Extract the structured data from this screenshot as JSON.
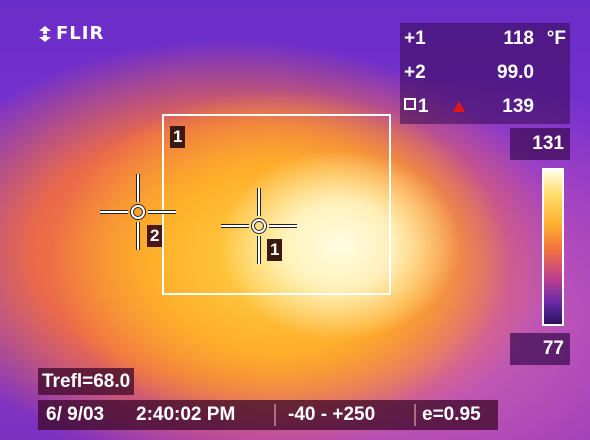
{
  "brand": {
    "name": "FLIR"
  },
  "readouts": [
    {
      "label": "1",
      "glyph": "+",
      "value": "118",
      "unit": "°F"
    },
    {
      "label": "2",
      "glyph": "+",
      "value": "99.0",
      "unit": ""
    },
    {
      "label": "1",
      "glyph": "□",
      "value": "139",
      "unit": "",
      "indicator": "max-triangle"
    }
  ],
  "scale": {
    "max": "131",
    "min": "77"
  },
  "markers": {
    "roi_box_label": "1",
    "spot1_label": "1",
    "spot2_label": "2"
  },
  "footer": {
    "trefl": "Trefl=68.0",
    "date": "6/ 9/03",
    "time": "2:40:02 PM",
    "range": "-40 - +250",
    "emissivity": "e=0.95"
  },
  "colors": {
    "indicator_red": "#e01818",
    "overlay_bg": "#370a50",
    "footer_bg": "#3c0828"
  }
}
